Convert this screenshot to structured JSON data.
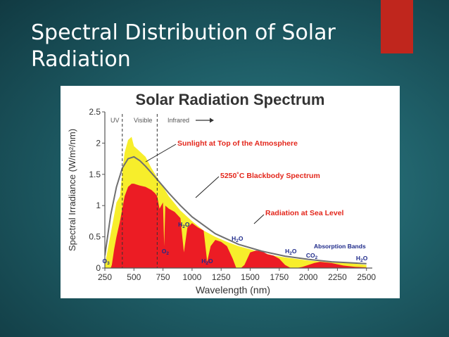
{
  "slide": {
    "title": "Spectral Distribution of Solar Radiation",
    "accent_color": "#c0261d"
  },
  "chart_data": {
    "type": "area",
    "title": "Solar Radiation Spectrum",
    "xlabel": "Wavelength (nm)",
    "ylabel": "Spectral Irradiance (W/m²/nm)",
    "xlim": [
      250,
      2550
    ],
    "ylim": [
      0,
      2.5
    ],
    "x_ticks": [
      250,
      500,
      750,
      1000,
      1250,
      1500,
      1750,
      2000,
      2250,
      2500
    ],
    "y_ticks": [
      0,
      0.5,
      1,
      1.5,
      2,
      2.5
    ],
    "y_tick_labels": [
      "0",
      "0.5",
      "1",
      "1.5",
      "2",
      "2.5"
    ],
    "regions": [
      {
        "label": "UV",
        "from": 250,
        "to": 400
      },
      {
        "label": "Visible",
        "from": 400,
        "to": 700
      },
      {
        "label": "Infrared",
        "from": 700,
        "to": 2550
      }
    ],
    "region_dividers": [
      400,
      700
    ],
    "series": [
      {
        "name": "Sunlight at Top of the Atmosphere",
        "color": "#f7ee2b",
        "x": [
          250,
          290,
          320,
          350,
          380,
          400,
          420,
          450,
          480,
          500,
          530,
          560,
          600,
          650,
          700,
          750,
          800,
          900,
          1000,
          1100,
          1200,
          1300,
          1400,
          1500,
          1600,
          1700,
          1800,
          2000,
          2200,
          2400,
          2500
        ],
        "values": [
          0.05,
          0.45,
          0.75,
          1.05,
          1.15,
          1.55,
          1.85,
          2.05,
          2.1,
          1.95,
          1.9,
          1.85,
          1.78,
          1.6,
          1.45,
          1.3,
          1.15,
          0.92,
          0.75,
          0.6,
          0.5,
          0.42,
          0.35,
          0.3,
          0.25,
          0.2,
          0.17,
          0.12,
          0.09,
          0.07,
          0.05
        ]
      },
      {
        "name": "Radiation at Sea Level",
        "color": "#ec1c24",
        "x": [
          250,
          300,
          310,
          330,
          350,
          380,
          400,
          420,
          450,
          480,
          500,
          550,
          600,
          650,
          680,
          700,
          720,
          750,
          760,
          770,
          800,
          850,
          900,
          930,
          960,
          1000,
          1050,
          1100,
          1130,
          1160,
          1200,
          1250,
          1300,
          1350,
          1380,
          1420,
          1450,
          1500,
          1550,
          1600,
          1650,
          1700,
          1750,
          1800,
          1850,
          1900,
          1950,
          2000,
          2050,
          2100,
          2200,
          2300,
          2400,
          2500
        ],
        "values": [
          0,
          0,
          0.05,
          0.3,
          0.5,
          0.75,
          0.95,
          1.15,
          1.3,
          1.35,
          1.35,
          1.32,
          1.3,
          1.25,
          1.2,
          1.15,
          0.95,
          1.05,
          0.35,
          1.0,
          0.95,
          0.9,
          0.8,
          0.25,
          0.65,
          0.72,
          0.65,
          0.6,
          0.1,
          0.35,
          0.45,
          0.42,
          0.35,
          0.15,
          0.0,
          0.0,
          0.05,
          0.25,
          0.28,
          0.27,
          0.22,
          0.2,
          0.15,
          0.05,
          0.0,
          0.0,
          0.02,
          0.05,
          0.08,
          0.1,
          0.08,
          0.04,
          0.02,
          0.01
        ]
      },
      {
        "name": "5250°C Blackbody Spectrum",
        "color": "#707070",
        "x": [
          250,
          300,
          350,
          400,
          450,
          500,
          550,
          600,
          700,
          800,
          900,
          1000,
          1200,
          1400,
          1600,
          1800,
          2000,
          2200,
          2400,
          2500
        ],
        "values": [
          0.2,
          0.85,
          1.3,
          1.6,
          1.75,
          1.78,
          1.72,
          1.63,
          1.42,
          1.2,
          1.0,
          0.82,
          0.55,
          0.38,
          0.27,
          0.19,
          0.14,
          0.1,
          0.08,
          0.07
        ]
      }
    ],
    "annotations": {
      "top_atmosphere": "Sunlight at Top of the Atmosphere",
      "blackbody": "5250˚C Blackbody Spectrum",
      "sea_level": "Radiation at Sea Level",
      "absorption_bands": "Absorption Bands"
    },
    "absorption_labels": [
      {
        "base": "O",
        "sub": "3",
        "x_nm": 260
      },
      {
        "base": "O",
        "sub": "2",
        "x_nm": 770
      },
      {
        "base": "H",
        "sub": "2",
        "tail": "O",
        "x_nm": 930
      },
      {
        "base": "H",
        "sub": "2",
        "tail": "O",
        "x_nm": 1130
      },
      {
        "base": "H",
        "sub": "2",
        "tail": "O",
        "x_nm": 1390
      },
      {
        "base": "H",
        "sub": "2",
        "tail": "O",
        "x_nm": 1850
      },
      {
        "base": "CO",
        "sub": "2",
        "x_nm": 2030
      },
      {
        "base": "H",
        "sub": "2",
        "tail": "O",
        "x_nm": 2460
      }
    ]
  }
}
